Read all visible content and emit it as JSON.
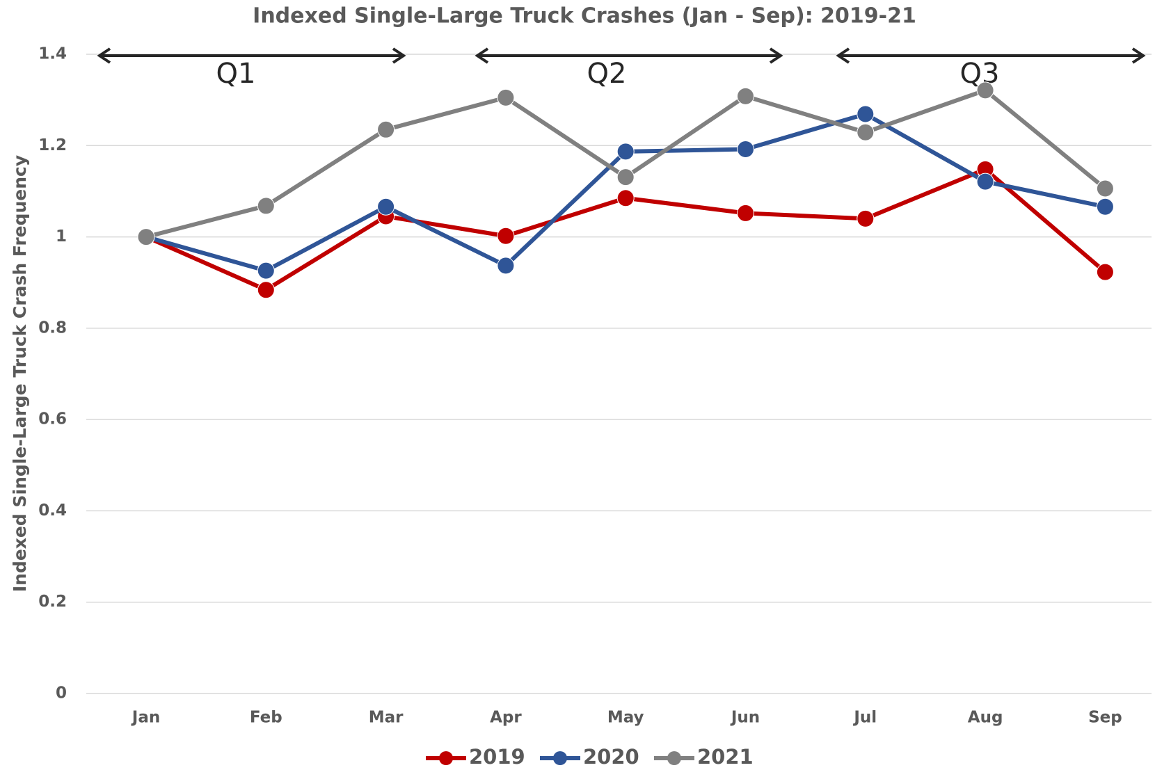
{
  "chart_data": {
    "type": "line",
    "title": "Indexed Single-Large Truck Crashes (Jan - Sep): 2019-21",
    "y_label": "Indexed Single-Large Truck Crash Frequency",
    "annotations": [
      "Q1",
      "Q2",
      "Q3"
    ],
    "categories": [
      "Jan",
      "Feb",
      "Mar",
      "Apr",
      "May",
      "Jun",
      "Jul",
      "Aug",
      "Sep"
    ],
    "series": [
      {
        "name": "2019",
        "color": "#c00000",
        "values": [
          1.0,
          0.884,
          1.045,
          1.002,
          1.085,
          1.052,
          1.04,
          1.148,
          0.923
        ]
      },
      {
        "name": "2020",
        "color": "#2f5597",
        "values": [
          1.0,
          0.926,
          1.066,
          0.937,
          1.187,
          1.192,
          1.269,
          1.121,
          1.066
        ]
      },
      {
        "name": "2021",
        "color": "#808080",
        "values": [
          1.0,
          1.068,
          1.235,
          1.305,
          1.131,
          1.308,
          1.229,
          1.321,
          1.106
        ]
      }
    ],
    "ylim": [
      0,
      1.4
    ],
    "yticks": [
      0,
      0.2,
      0.4,
      0.6,
      0.8,
      1,
      1.2,
      1.4
    ],
    "grid": true,
    "legend": "bottom"
  }
}
